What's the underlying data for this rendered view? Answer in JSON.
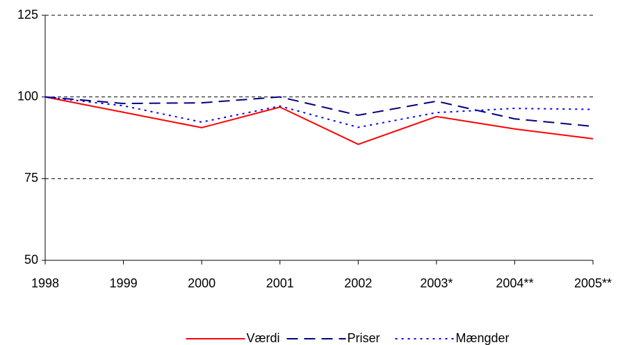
{
  "chart_data": {
    "type": "line",
    "categories": [
      "1998",
      "1999",
      "2000",
      "2001",
      "2002",
      "2003*",
      "2004**",
      "2005**"
    ],
    "series": [
      {
        "name": "Værdi",
        "color": "#ff0000",
        "dash": "solid",
        "values": [
          100,
          95.3,
          90.6,
          96.9,
          85.5,
          94,
          90.2,
          87.2
        ]
      },
      {
        "name": "Priser",
        "color": "#000080",
        "dash": "dashed",
        "values": [
          100,
          98,
          98.2,
          100,
          94.4,
          98.7,
          93.3,
          91
        ]
      },
      {
        "name": "Mængder",
        "color": "#0000ff",
        "dash": "dotted",
        "values": [
          100,
          97.3,
          92.3,
          97.2,
          90.7,
          95.2,
          96.5,
          96.2
        ]
      }
    ],
    "ylim": [
      50,
      125
    ],
    "yticks": [
      50,
      75,
      100,
      125
    ],
    "grid": true,
    "legend": "bottom"
  }
}
